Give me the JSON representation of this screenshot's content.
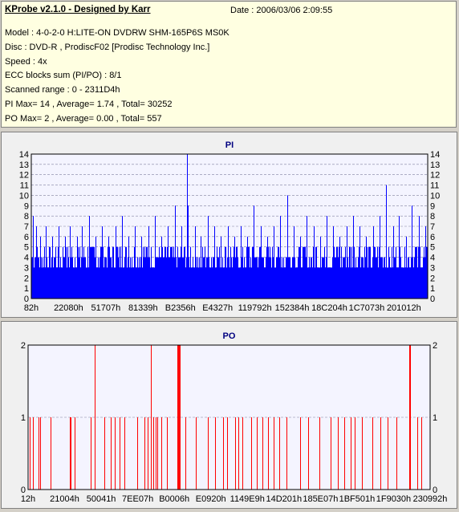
{
  "info": {
    "title": "KProbe v2.1.0 - Designed by Karr",
    "date": "Date : 2006/03/06 2:09:55",
    "model": "Model : 4-0-2-0 H:LITE-ON DVDRW SHM-165P6S MS0K",
    "disc": "Disc : DVD-R , ProdiscF02 [Prodisc Technology Inc.]",
    "speed": "Speed : 4x",
    "ecc": "ECC blocks sum (PI/PO) : 8/1",
    "range": "Scanned range : 0 - 2311D4h",
    "pi_stats": "PI Max= 14 , Average= 1.74 , Total= 30252",
    "po_stats": "PO Max= 2 , Average= 0.00 , Total= 557"
  },
  "colors": {
    "pi": "#0000ff",
    "po": "#ff0000",
    "plot_bg": "#f4f4ff",
    "grid": "#8080a0"
  },
  "chart_data": [
    {
      "type": "bar",
      "title": "PI",
      "ylim": [
        0,
        14
      ],
      "yticks": [
        0,
        1,
        2,
        3,
        4,
        5,
        6,
        7,
        8,
        9,
        10,
        11,
        12,
        13,
        14
      ],
      "xtick_labels": [
        "82h",
        "22080h",
        "51707h",
        "81339h",
        "B2356h",
        "E4327h",
        "119792h",
        "152384h",
        "18C204h",
        "1C7073h",
        "201012h"
      ],
      "grid": true,
      "baseline_range": [
        3,
        5
      ],
      "peaks": [
        {
          "pos": 0.004,
          "value": 8
        },
        {
          "pos": 0.013,
          "value": 7
        },
        {
          "pos": 0.022,
          "value": 6
        },
        {
          "pos": 0.036,
          "value": 7
        },
        {
          "pos": 0.052,
          "value": 6
        },
        {
          "pos": 0.068,
          "value": 7
        },
        {
          "pos": 0.085,
          "value": 6
        },
        {
          "pos": 0.098,
          "value": 7
        },
        {
          "pos": 0.115,
          "value": 6
        },
        {
          "pos": 0.128,
          "value": 7
        },
        {
          "pos": 0.145,
          "value": 8
        },
        {
          "pos": 0.162,
          "value": 6
        },
        {
          "pos": 0.178,
          "value": 7
        },
        {
          "pos": 0.195,
          "value": 6
        },
        {
          "pos": 0.212,
          "value": 7
        },
        {
          "pos": 0.228,
          "value": 8
        },
        {
          "pos": 0.245,
          "value": 6
        },
        {
          "pos": 0.262,
          "value": 7
        },
        {
          "pos": 0.278,
          "value": 6
        },
        {
          "pos": 0.295,
          "value": 7
        },
        {
          "pos": 0.312,
          "value": 8
        },
        {
          "pos": 0.328,
          "value": 6
        },
        {
          "pos": 0.345,
          "value": 7
        },
        {
          "pos": 0.362,
          "value": 9
        },
        {
          "pos": 0.378,
          "value": 7
        },
        {
          "pos": 0.392,
          "value": 14
        },
        {
          "pos": 0.395,
          "value": 9
        },
        {
          "pos": 0.412,
          "value": 7
        },
        {
          "pos": 0.428,
          "value": 6
        },
        {
          "pos": 0.445,
          "value": 8
        },
        {
          "pos": 0.462,
          "value": 7
        },
        {
          "pos": 0.478,
          "value": 6
        },
        {
          "pos": 0.495,
          "value": 7
        },
        {
          "pos": 0.512,
          "value": 6
        },
        {
          "pos": 0.528,
          "value": 7
        },
        {
          "pos": 0.545,
          "value": 6
        },
        {
          "pos": 0.56,
          "value": 9
        },
        {
          "pos": 0.578,
          "value": 7
        },
        {
          "pos": 0.595,
          "value": 6
        },
        {
          "pos": 0.612,
          "value": 7
        },
        {
          "pos": 0.628,
          "value": 8
        },
        {
          "pos": 0.645,
          "value": 10
        },
        {
          "pos": 0.662,
          "value": 7
        },
        {
          "pos": 0.678,
          "value": 6
        },
        {
          "pos": 0.695,
          "value": 8
        },
        {
          "pos": 0.712,
          "value": 7
        },
        {
          "pos": 0.728,
          "value": 6
        },
        {
          "pos": 0.745,
          "value": 8
        },
        {
          "pos": 0.762,
          "value": 7
        },
        {
          "pos": 0.778,
          "value": 6
        },
        {
          "pos": 0.795,
          "value": 7
        },
        {
          "pos": 0.812,
          "value": 8
        },
        {
          "pos": 0.828,
          "value": 7
        },
        {
          "pos": 0.845,
          "value": 6
        },
        {
          "pos": 0.862,
          "value": 7
        },
        {
          "pos": 0.878,
          "value": 8
        },
        {
          "pos": 0.895,
          "value": 11
        },
        {
          "pos": 0.912,
          "value": 7
        },
        {
          "pos": 0.928,
          "value": 8
        },
        {
          "pos": 0.945,
          "value": 6
        },
        {
          "pos": 0.96,
          "value": 9
        },
        {
          "pos": 0.978,
          "value": 8
        },
        {
          "pos": 0.993,
          "value": 7
        }
      ]
    },
    {
      "type": "bar",
      "title": "PO",
      "ylim": [
        0,
        2
      ],
      "yticks": [
        0,
        1,
        2
      ],
      "xtick_labels": [
        "12h",
        "21004h",
        "50041h",
        "7EE07h",
        "B0006h",
        "E0920h",
        "1149E9h",
        "14D201h",
        "185E07h",
        "1BF501h",
        "1F9030h",
        "230992h"
      ],
      "grid": true,
      "events": [
        {
          "pos": 0.004,
          "value": 1
        },
        {
          "pos": 0.012,
          "value": 1
        },
        {
          "pos": 0.026,
          "value": 1
        },
        {
          "pos": 0.029,
          "value": 1
        },
        {
          "pos": 0.055,
          "value": 1
        },
        {
          "pos": 0.104,
          "value": 1
        },
        {
          "pos": 0.106,
          "value": 1
        },
        {
          "pos": 0.116,
          "value": 1
        },
        {
          "pos": 0.155,
          "value": 1
        },
        {
          "pos": 0.165,
          "value": 2
        },
        {
          "pos": 0.19,
          "value": 1
        },
        {
          "pos": 0.206,
          "value": 1
        },
        {
          "pos": 0.215,
          "value": 1
        },
        {
          "pos": 0.228,
          "value": 1
        },
        {
          "pos": 0.24,
          "value": 1
        },
        {
          "pos": 0.271,
          "value": 1
        },
        {
          "pos": 0.29,
          "value": 1
        },
        {
          "pos": 0.298,
          "value": 1
        },
        {
          "pos": 0.305,
          "value": 2
        },
        {
          "pos": 0.312,
          "value": 1
        },
        {
          "pos": 0.318,
          "value": 1
        },
        {
          "pos": 0.322,
          "value": 1
        },
        {
          "pos": 0.332,
          "value": 1
        },
        {
          "pos": 0.346,
          "value": 1
        },
        {
          "pos": 0.372,
          "value": 2
        },
        {
          "pos": 0.374,
          "value": 2
        },
        {
          "pos": 0.376,
          "value": 2
        },
        {
          "pos": 0.378,
          "value": 2
        },
        {
          "pos": 0.392,
          "value": 1
        },
        {
          "pos": 0.418,
          "value": 1
        },
        {
          "pos": 0.448,
          "value": 1
        },
        {
          "pos": 0.466,
          "value": 1
        },
        {
          "pos": 0.486,
          "value": 1
        },
        {
          "pos": 0.496,
          "value": 1
        },
        {
          "pos": 0.514,
          "value": 1
        },
        {
          "pos": 0.522,
          "value": 1
        },
        {
          "pos": 0.533,
          "value": 1
        },
        {
          "pos": 0.555,
          "value": 1
        },
        {
          "pos": 0.569,
          "value": 1
        },
        {
          "pos": 0.583,
          "value": 1
        },
        {
          "pos": 0.596,
          "value": 1
        },
        {
          "pos": 0.61,
          "value": 1
        },
        {
          "pos": 0.624,
          "value": 1
        },
        {
          "pos": 0.643,
          "value": 1
        },
        {
          "pos": 0.676,
          "value": 1
        },
        {
          "pos": 0.697,
          "value": 1
        },
        {
          "pos": 0.725,
          "value": 1
        },
        {
          "pos": 0.753,
          "value": 1
        },
        {
          "pos": 0.77,
          "value": 1
        },
        {
          "pos": 0.786,
          "value": 1
        },
        {
          "pos": 0.802,
          "value": 1
        },
        {
          "pos": 0.813,
          "value": 1
        },
        {
          "pos": 0.83,
          "value": 1
        },
        {
          "pos": 0.856,
          "value": 1
        },
        {
          "pos": 0.876,
          "value": 1
        },
        {
          "pos": 0.894,
          "value": 1
        },
        {
          "pos": 0.917,
          "value": 1
        },
        {
          "pos": 0.949,
          "value": 2
        },
        {
          "pos": 0.951,
          "value": 2
        },
        {
          "pos": 0.968,
          "value": 1
        },
        {
          "pos": 0.978,
          "value": 1
        }
      ]
    }
  ]
}
